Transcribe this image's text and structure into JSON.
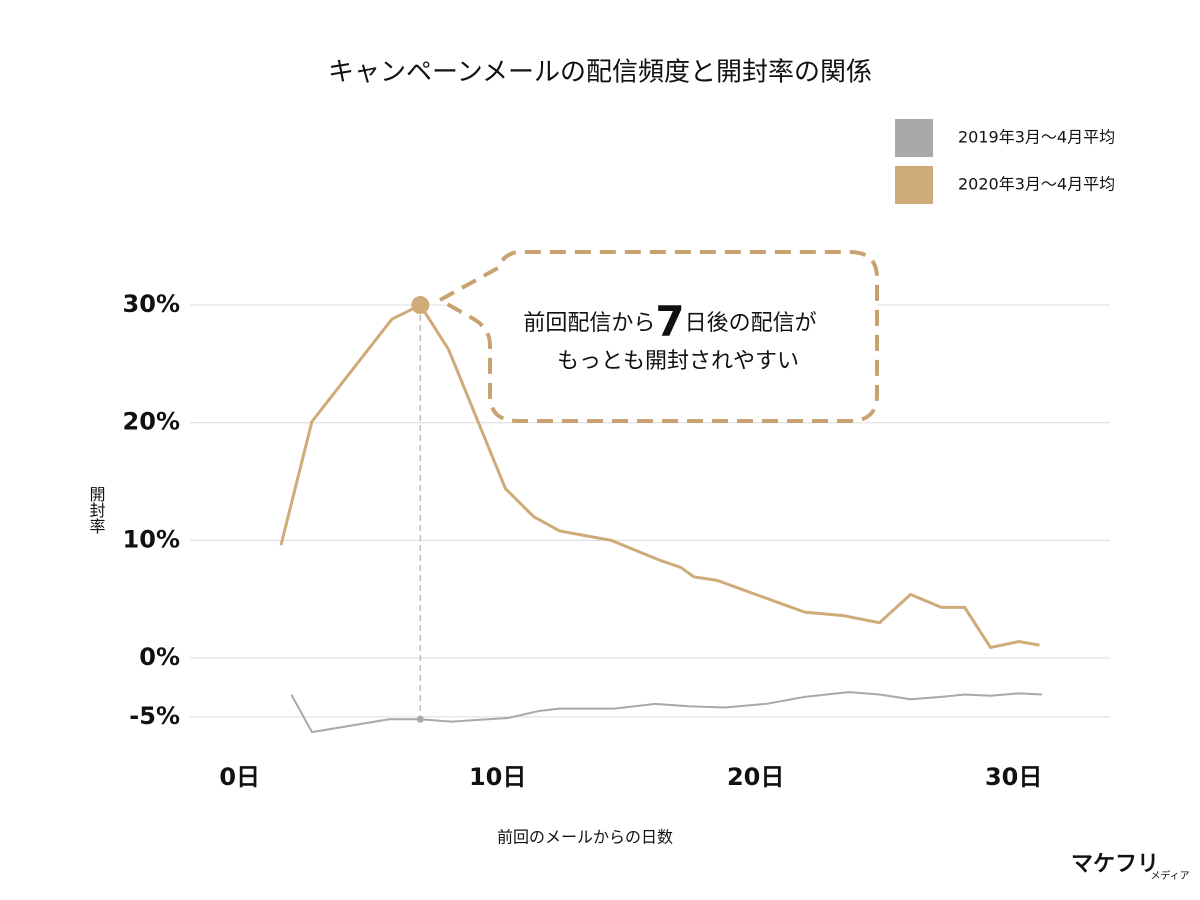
{
  "chart_data": {
    "type": "line",
    "title": "キャンペーンメールの配信頻度と開封率の関係",
    "x_label": "前回のメールからの日数",
    "y_label": "開封率",
    "xlim": [
      -1.5,
      33.5
    ],
    "xticks": [
      {
        "value": 0,
        "label": "0日"
      },
      {
        "value": 10,
        "label": "10日"
      },
      {
        "value": 20,
        "label": "20日"
      },
      {
        "value": 30,
        "label": "30日"
      }
    ],
    "ylim": [
      -7,
      32
    ],
    "yticks": [
      {
        "value": 30,
        "label": "30%"
      },
      {
        "value": 20,
        "label": "20%"
      },
      {
        "value": 10,
        "label": "10%"
      },
      {
        "value": 0,
        "label": "0%"
      },
      {
        "value": -5,
        "label": "-5%"
      }
    ],
    "grid": true,
    "legend": "top-right",
    "series": [
      {
        "name": "2019年3月〜4月平均",
        "color": "#a9a9a7",
        "x": [
          2.0,
          2.8,
          5.8,
          7,
          8.2,
          10.4,
          11.6,
          12.4,
          14.5,
          16.1,
          17.4,
          18.8,
          20.4,
          21.9,
          23.6,
          24.8,
          26.0,
          27.2,
          28.1,
          29.1,
          30.2,
          31.1
        ],
        "values": [
          -3.1,
          -6.3,
          -5.2,
          -5.2,
          -5.4,
          -5.1,
          -4.5,
          -4.3,
          -4.3,
          -3.9,
          -4.1,
          -4.2,
          -3.9,
          -3.3,
          -2.9,
          -3.1,
          -3.5,
          -3.3,
          -3.1,
          -3.2,
          -3.0,
          -3.1
        ]
      },
      {
        "name": "2020年3月〜4月平均",
        "color": "#cfab7a",
        "x": [
          1.6,
          2.8,
          5.9,
          7,
          8.1,
          10.3,
          11.4,
          12.4,
          14.4,
          16.3,
          17.1,
          17.6,
          18.5,
          21.9,
          23.4,
          24.8,
          26.0,
          27.2,
          28.1,
          29.1,
          30.2,
          31.0
        ],
        "values": [
          9.6,
          20.1,
          28.8,
          30,
          26.2,
          14.4,
          12.0,
          10.8,
          10.0,
          8.3,
          7.7,
          6.9,
          6.6,
          3.9,
          3.6,
          3.0,
          5.4,
          4.3,
          4.3,
          0.9,
          1.4,
          1.1
        ]
      }
    ],
    "annotation": {
      "line1": [
        "前回配信から",
        "7",
        "日後の配信が"
      ],
      "line2": "もっとも開封されやすい"
    },
    "logo": {
      "main": "マケフリ",
      "sub": "メディア"
    }
  }
}
